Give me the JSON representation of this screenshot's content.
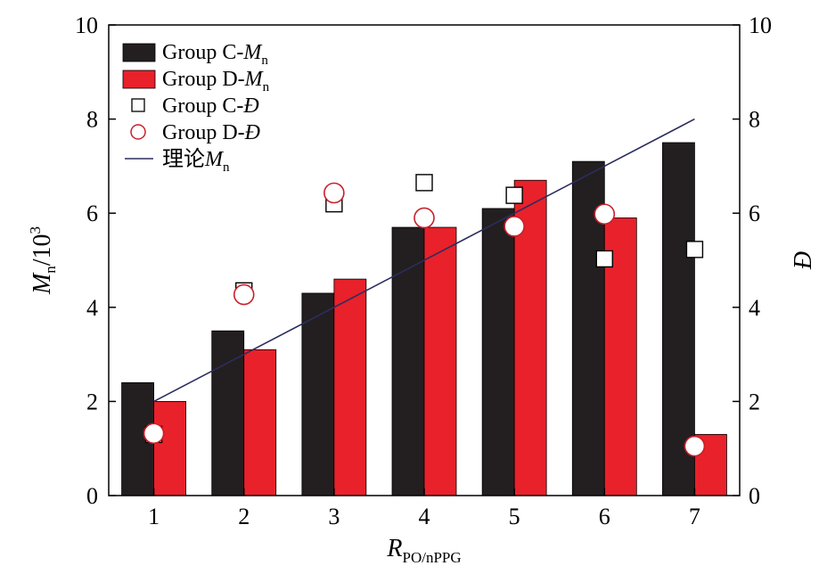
{
  "chart_data": {
    "type": "bar",
    "categories": [
      "1",
      "2",
      "3",
      "4",
      "5",
      "6",
      "7"
    ],
    "bar_series": [
      {
        "name_main": "Group C-",
        "name_italic": "M",
        "name_sub": "n",
        "color": "#231f20",
        "values": [
          2.4,
          3.5,
          4.3,
          5.7,
          6.1,
          7.1,
          7.5
        ]
      },
      {
        "name_main": "Group D-",
        "name_italic": "M",
        "name_sub": "n",
        "color": "#e8212b",
        "values": [
          2.0,
          3.1,
          4.6,
          5.7,
          6.7,
          5.9,
          1.3
        ]
      }
    ],
    "scatter_series": [
      {
        "name_main": "Group C-",
        "name_italic": "Đ",
        "marker": "square",
        "values": [
          1.3,
          4.35,
          6.2,
          6.65,
          6.38,
          5.03,
          5.23
        ]
      },
      {
        "name_main": "Group D-",
        "name_italic": "Đ",
        "marker": "circle",
        "stroke": "#c8202a",
        "values": [
          1.32,
          4.27,
          6.43,
          5.9,
          5.72,
          5.98,
          1.05
        ]
      }
    ],
    "line_series": {
      "name_main": "理论",
      "name_italic": "M",
      "name_sub": "n",
      "color": "#2b2d5e",
      "x": [
        1,
        7
      ],
      "y": [
        2,
        8
      ]
    },
    "y_left": {
      "label_italic": "M",
      "label_sub": "n",
      "label_rest": "/10",
      "label_sup": "3",
      "min": 0,
      "max": 10,
      "ticks": [
        0,
        2,
        4,
        6,
        8,
        10
      ]
    },
    "y_right": {
      "label": "Đ",
      "min": 0,
      "max": 10,
      "ticks": [
        0,
        2,
        4,
        6,
        8,
        10
      ]
    },
    "x_axis": {
      "label_italic": "R",
      "label_sub": "PO/nPPG"
    },
    "legend_position": "top-left",
    "grid": false
  }
}
